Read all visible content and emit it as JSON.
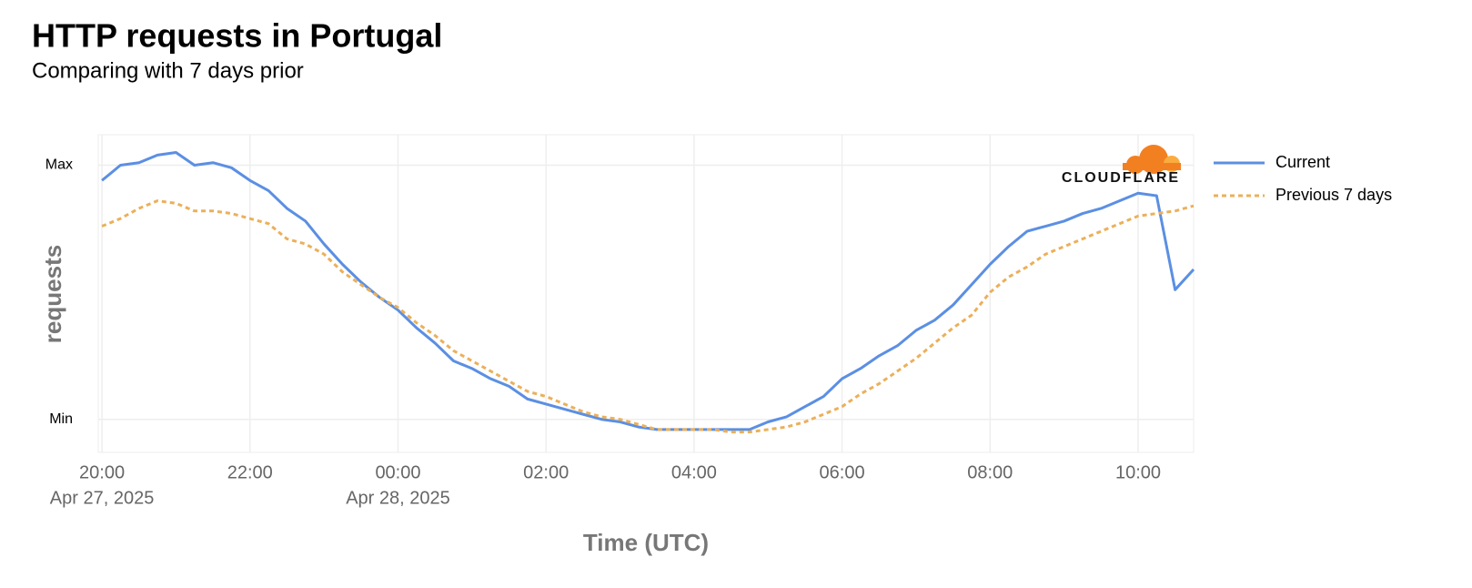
{
  "chart_data": {
    "type": "line",
    "title": "HTTP requests in Portugal",
    "subtitle": "Comparing with 7 days prior",
    "y_axis_label": "requests",
    "x_axis_label": "Time (UTC)",
    "logo_text": "CLOUDFLARE",
    "grid": true,
    "legend_position": "right",
    "xlim": [
      "2025-04-27T19:57",
      "2025-04-28T10:45"
    ],
    "ylim": [
      -13,
      112
    ],
    "yticks": [
      {
        "value": 0,
        "label": "Min"
      },
      {
        "value": 100,
        "label": "Max"
      }
    ],
    "xticks": [
      {
        "value": "2025-04-27T20:00",
        "label": "20:00"
      },
      {
        "value": "2025-04-27T22:00",
        "label": "22:00"
      },
      {
        "value": "2025-04-28T00:00",
        "label": "00:00"
      },
      {
        "value": "2025-04-28T02:00",
        "label": "02:00"
      },
      {
        "value": "2025-04-28T04:00",
        "label": "04:00"
      },
      {
        "value": "2025-04-28T06:00",
        "label": "06:00"
      },
      {
        "value": "2025-04-28T08:00",
        "label": "08:00"
      },
      {
        "value": "2025-04-28T10:00",
        "label": "10:00"
      }
    ],
    "xtick_dates": [
      {
        "value": "2025-04-27T20:00",
        "label": "Apr 27, 2025"
      },
      {
        "value": "2025-04-28T00:00",
        "label": "Apr 28, 2025"
      }
    ],
    "x": [
      "2025-04-27T20:00",
      "2025-04-27T20:15",
      "2025-04-27T20:30",
      "2025-04-27T20:45",
      "2025-04-27T21:00",
      "2025-04-27T21:15",
      "2025-04-27T21:30",
      "2025-04-27T21:45",
      "2025-04-27T22:00",
      "2025-04-27T22:15",
      "2025-04-27T22:30",
      "2025-04-27T22:45",
      "2025-04-27T23:00",
      "2025-04-27T23:15",
      "2025-04-27T23:30",
      "2025-04-27T23:45",
      "2025-04-28T00:00",
      "2025-04-28T00:15",
      "2025-04-28T00:30",
      "2025-04-28T00:45",
      "2025-04-28T01:00",
      "2025-04-28T01:15",
      "2025-04-28T01:30",
      "2025-04-28T01:45",
      "2025-04-28T02:00",
      "2025-04-28T02:15",
      "2025-04-28T02:30",
      "2025-04-28T02:45",
      "2025-04-28T03:00",
      "2025-04-28T03:15",
      "2025-04-28T03:30",
      "2025-04-28T03:45",
      "2025-04-28T04:00",
      "2025-04-28T04:15",
      "2025-04-28T04:30",
      "2025-04-28T04:45",
      "2025-04-28T05:00",
      "2025-04-28T05:15",
      "2025-04-28T05:30",
      "2025-04-28T05:45",
      "2025-04-28T06:00",
      "2025-04-28T06:15",
      "2025-04-28T06:30",
      "2025-04-28T06:45",
      "2025-04-28T07:00",
      "2025-04-28T07:15",
      "2025-04-28T07:30",
      "2025-04-28T07:45",
      "2025-04-28T08:00",
      "2025-04-28T08:15",
      "2025-04-28T08:30",
      "2025-04-28T08:45",
      "2025-04-28T09:00",
      "2025-04-28T09:15",
      "2025-04-28T09:30",
      "2025-04-28T09:45",
      "2025-04-28T10:00",
      "2025-04-28T10:15",
      "2025-04-28T10:30",
      "2025-04-28T10:45"
    ],
    "series": [
      {
        "name": "Current",
        "color": "#5b8fe3",
        "dash": false,
        "values": [
          94,
          100,
          101,
          104,
          105,
          100,
          101,
          99,
          94,
          90,
          83,
          78,
          69,
          61,
          54,
          48,
          43,
          36,
          30,
          23,
          20,
          16,
          13,
          8,
          6,
          4,
          2,
          0,
          -1,
          -3,
          -4,
          -4,
          -4,
          -4,
          -4,
          -4,
          -1,
          1,
          5,
          9,
          16,
          20,
          25,
          29,
          35,
          39,
          45,
          53,
          61,
          68,
          74,
          76,
          78,
          81,
          83,
          86,
          89,
          88,
          51,
          59
        ]
      },
      {
        "name": "Previous 7 days",
        "color": "#ebb05a",
        "dash": true,
        "values": [
          76,
          79,
          83,
          86,
          85,
          82,
          82,
          81,
          79,
          77,
          71,
          69,
          65,
          58,
          53,
          48,
          44,
          38,
          33,
          27,
          23,
          19,
          15,
          11,
          9,
          6,
          3,
          1,
          0,
          -2,
          -4,
          -4,
          -4,
          -4,
          -5,
          -5,
          -4,
          -3,
          -1,
          2,
          5,
          10,
          14,
          19,
          24,
          30,
          36,
          41,
          50,
          56,
          60,
          65,
          68,
          71,
          74,
          77,
          80,
          81,
          82,
          84
        ]
      }
    ]
  }
}
